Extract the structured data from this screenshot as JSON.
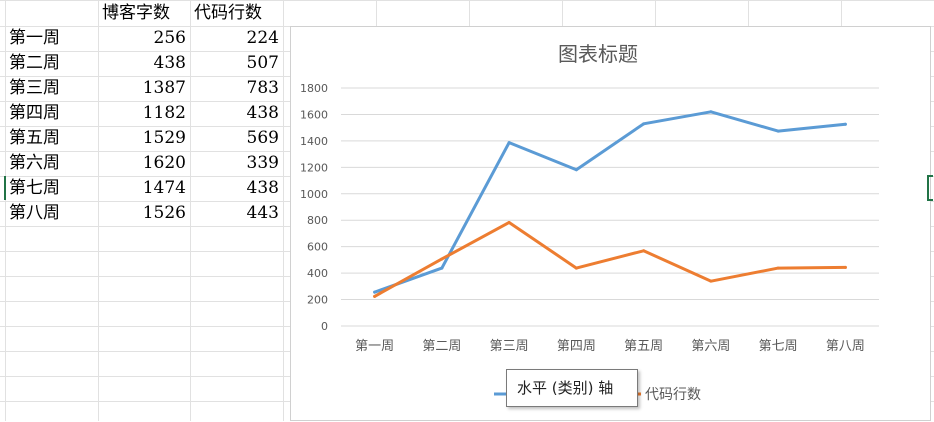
{
  "spreadsheet": {
    "headers": [
      "",
      "博客字数",
      "代码行数"
    ],
    "rows": [
      {
        "label": "第一周",
        "words": "256",
        "lines": "224"
      },
      {
        "label": "第二周",
        "words": "438",
        "lines": "507"
      },
      {
        "label": "第三周",
        "words": "1387",
        "lines": "783"
      },
      {
        "label": "第四周",
        "words": "1182",
        "lines": "438"
      },
      {
        "label": "第五周",
        "words": "1529",
        "lines": "569"
      },
      {
        "label": "第六周",
        "words": "1620",
        "lines": "339"
      },
      {
        "label": "第七周",
        "words": "1474",
        "lines": "438"
      },
      {
        "label": "第八周",
        "words": "1526",
        "lines": "443"
      }
    ]
  },
  "chart_data": {
    "type": "line",
    "title": "图表标题",
    "categories": [
      "第一周",
      "第二周",
      "第三周",
      "第四周",
      "第五周",
      "第六周",
      "第七周",
      "第八周"
    ],
    "y_ticks": [
      "0",
      "200",
      "400",
      "600",
      "800",
      "1000",
      "1200",
      "1400",
      "1600",
      "1800"
    ],
    "ylim": [
      0,
      1800
    ],
    "grid": true,
    "legend_position": "bottom",
    "series": [
      {
        "values": [
          256,
          438,
          1387,
          1182,
          1529,
          1620,
          1474,
          1526
        ],
        "color": "#5b9bd5"
      },
      {
        "name": "代码行数",
        "values": [
          224,
          507,
          783,
          438,
          569,
          339,
          438,
          443
        ],
        "color": "#ed7d31"
      }
    ]
  },
  "tooltip": {
    "text": "水平 (类别) 轴"
  },
  "colors": {
    "gridline": "#d9d9d9",
    "sheet_grid": "#e1e1e1",
    "selection": "#217346"
  }
}
